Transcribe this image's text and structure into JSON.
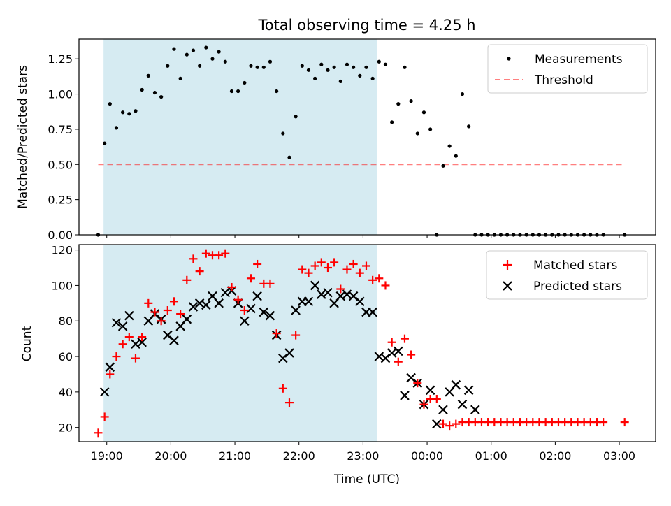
{
  "title": "Total observing time = 4.25 h",
  "colors": {
    "shade": "#add8e6",
    "threshold": "#ff0000",
    "matched": "#ff0000",
    "predicted": "#000000",
    "measurements": "#000000"
  },
  "chart_data": [
    {
      "type": "scatter",
      "title": "Total observing time = 4.25 h",
      "xlabel": "",
      "ylabel": "Matched/Predicted stars",
      "xlim": [
        "18:34",
        "03:34"
      ],
      "ylim": [
        0,
        1.39
      ],
      "yticks": [
        "0.00",
        "0.25",
        "0.50",
        "0.75",
        "1.00",
        "1.25"
      ],
      "grid": false,
      "legend_position": "top-right",
      "shaded_interval": [
        "18:57",
        "23:13"
      ],
      "series": [
        {
          "name": "Measurements",
          "marker": "dot",
          "x": [
            "18:52",
            "18:58",
            "19:03",
            "19:09",
            "19:15",
            "19:21",
            "19:27",
            "19:33",
            "19:39",
            "19:45",
            "19:51",
            "19:57",
            "20:03",
            "20:09",
            "20:15",
            "20:21",
            "20:27",
            "20:33",
            "20:39",
            "20:45",
            "20:51",
            "20:57",
            "21:03",
            "21:09",
            "21:15",
            "21:21",
            "21:27",
            "21:33",
            "21:39",
            "21:45",
            "21:51",
            "21:57",
            "22:03",
            "22:09",
            "22:15",
            "22:21",
            "22:27",
            "22:33",
            "22:39",
            "22:45",
            "22:51",
            "22:57",
            "23:03",
            "23:09",
            "23:15",
            "23:21",
            "23:27",
            "23:33",
            "23:39",
            "23:45",
            "23:51",
            "23:57",
            "00:03",
            "00:09",
            "00:15",
            "00:21",
            "00:27",
            "00:33",
            "00:39",
            "00:45",
            "00:51",
            "00:57",
            "01:03",
            "01:09",
            "01:15",
            "01:21",
            "01:27",
            "01:33",
            "01:39",
            "01:45",
            "01:51",
            "01:57",
            "02:03",
            "02:09",
            "02:15",
            "02:21",
            "02:27",
            "02:33",
            "02:39",
            "02:45",
            "03:05"
          ],
          "y": [
            0,
            0.65,
            0.93,
            0.76,
            0.87,
            0.86,
            0.88,
            1.03,
            1.13,
            1.01,
            0.98,
            1.2,
            1.32,
            1.11,
            1.28,
            1.31,
            1.2,
            1.33,
            1.25,
            1.3,
            1.23,
            1.02,
            1.02,
            1.08,
            1.2,
            1.19,
            1.19,
            1.23,
            1.02,
            0.72,
            0.55,
            0.84,
            1.2,
            1.17,
            1.11,
            1.21,
            1.17,
            1.19,
            1.09,
            1.21,
            1.19,
            1.13,
            1.19,
            1.11,
            1.23,
            1.21,
            0.8,
            0.93,
            1.19,
            0.95,
            0.72,
            0.87,
            0.75,
            0,
            0.49,
            0.63,
            0.56,
            1.0,
            0.77,
            0,
            0,
            0,
            0,
            0,
            0,
            0,
            0,
            0,
            0,
            0,
            0,
            0,
            0,
            0,
            0,
            0,
            0,
            0,
            0,
            0,
            0
          ]
        },
        {
          "name": "Threshold",
          "marker": "dashed-line",
          "x": [
            "18:52",
            "03:05"
          ],
          "y": [
            0.5,
            0.5
          ]
        }
      ]
    },
    {
      "type": "scatter",
      "xlabel": "Time (UTC)",
      "ylabel": "Count",
      "xlim": [
        "18:34",
        "03:34"
      ],
      "ylim": [
        12,
        123
      ],
      "xticks": [
        "19:00",
        "20:00",
        "21:00",
        "22:00",
        "23:00",
        "00:00",
        "01:00",
        "02:00",
        "03:00"
      ],
      "yticks": [
        "20",
        "40",
        "60",
        "80",
        "100",
        "120"
      ],
      "grid": false,
      "legend_position": "top-right",
      "shaded_interval": [
        "18:57",
        "23:13"
      ],
      "series": [
        {
          "name": "Matched stars",
          "marker": "plus",
          "x": [
            "18:52",
            "18:58",
            "19:03",
            "19:09",
            "19:15",
            "19:21",
            "19:27",
            "19:33",
            "19:39",
            "19:45",
            "19:51",
            "19:57",
            "20:03",
            "20:09",
            "20:15",
            "20:21",
            "20:27",
            "20:33",
            "20:39",
            "20:45",
            "20:51",
            "20:57",
            "21:03",
            "21:09",
            "21:15",
            "21:21",
            "21:27",
            "21:33",
            "21:39",
            "21:45",
            "21:51",
            "21:57",
            "22:03",
            "22:09",
            "22:15",
            "22:21",
            "22:27",
            "22:33",
            "22:39",
            "22:45",
            "22:51",
            "22:57",
            "23:03",
            "23:09",
            "23:15",
            "23:21",
            "23:27",
            "23:33",
            "23:39",
            "23:45",
            "23:51",
            "23:57",
            "00:03",
            "00:09",
            "00:15",
            "00:21",
            "00:27",
            "00:33",
            "00:39",
            "00:45",
            "00:51",
            "00:57",
            "01:03",
            "01:09",
            "01:15",
            "01:21",
            "01:27",
            "01:33",
            "01:39",
            "01:45",
            "01:51",
            "01:57",
            "02:03",
            "02:09",
            "02:15",
            "02:21",
            "02:27",
            "02:33",
            "02:39",
            "02:45",
            "03:05"
          ],
          "y": [
            17,
            26,
            50,
            60,
            67,
            71,
            59,
            71,
            90,
            85,
            80,
            86,
            91,
            84,
            103,
            115,
            108,
            118,
            117,
            117,
            118,
            99,
            92,
            86,
            104,
            112,
            101,
            101,
            73,
            42,
            34,
            72,
            109,
            107,
            111,
            113,
            110,
            113,
            98,
            109,
            112,
            107,
            111,
            103,
            104,
            100,
            68,
            57,
            70,
            61,
            45,
            33,
            36,
            36,
            22,
            21,
            22,
            23,
            23,
            23,
            23,
            23,
            23,
            23,
            23,
            23,
            23,
            23,
            23,
            23,
            23,
            23,
            23,
            23,
            23,
            23,
            23,
            23,
            23,
            23,
            23
          ]
        },
        {
          "name": "Predicted stars",
          "marker": "x",
          "x": [
            "18:58",
            "19:03",
            "19:09",
            "19:15",
            "19:21",
            "19:27",
            "19:33",
            "19:39",
            "19:45",
            "19:51",
            "19:57",
            "20:03",
            "20:09",
            "20:15",
            "20:21",
            "20:27",
            "20:33",
            "20:39",
            "20:45",
            "20:51",
            "20:57",
            "21:03",
            "21:09",
            "21:15",
            "21:21",
            "21:27",
            "21:33",
            "21:39",
            "21:45",
            "21:51",
            "21:57",
            "22:03",
            "22:09",
            "22:15",
            "22:21",
            "22:27",
            "22:33",
            "22:39",
            "22:45",
            "22:51",
            "22:57",
            "23:03",
            "23:09",
            "23:15",
            "23:21",
            "23:27",
            "23:33",
            "23:39",
            "23:45",
            "23:51",
            "23:57",
            "00:03",
            "00:09",
            "00:15",
            "00:21",
            "00:27",
            "00:33",
            "00:39",
            "00:45"
          ],
          "y": [
            40,
            54,
            79,
            77,
            83,
            67,
            68,
            80,
            84,
            81,
            72,
            69,
            77,
            81,
            88,
            90,
            89,
            94,
            90,
            96,
            97,
            90,
            80,
            87,
            94,
            85,
            83,
            72,
            59,
            62,
            86,
            91,
            91,
            100,
            95,
            96,
            90,
            94,
            95,
            94,
            91,
            85,
            85,
            60,
            59,
            62,
            63,
            38,
            48,
            45,
            33,
            41,
            22,
            30,
            40,
            44,
            33,
            41,
            30
          ]
        }
      ]
    }
  ]
}
